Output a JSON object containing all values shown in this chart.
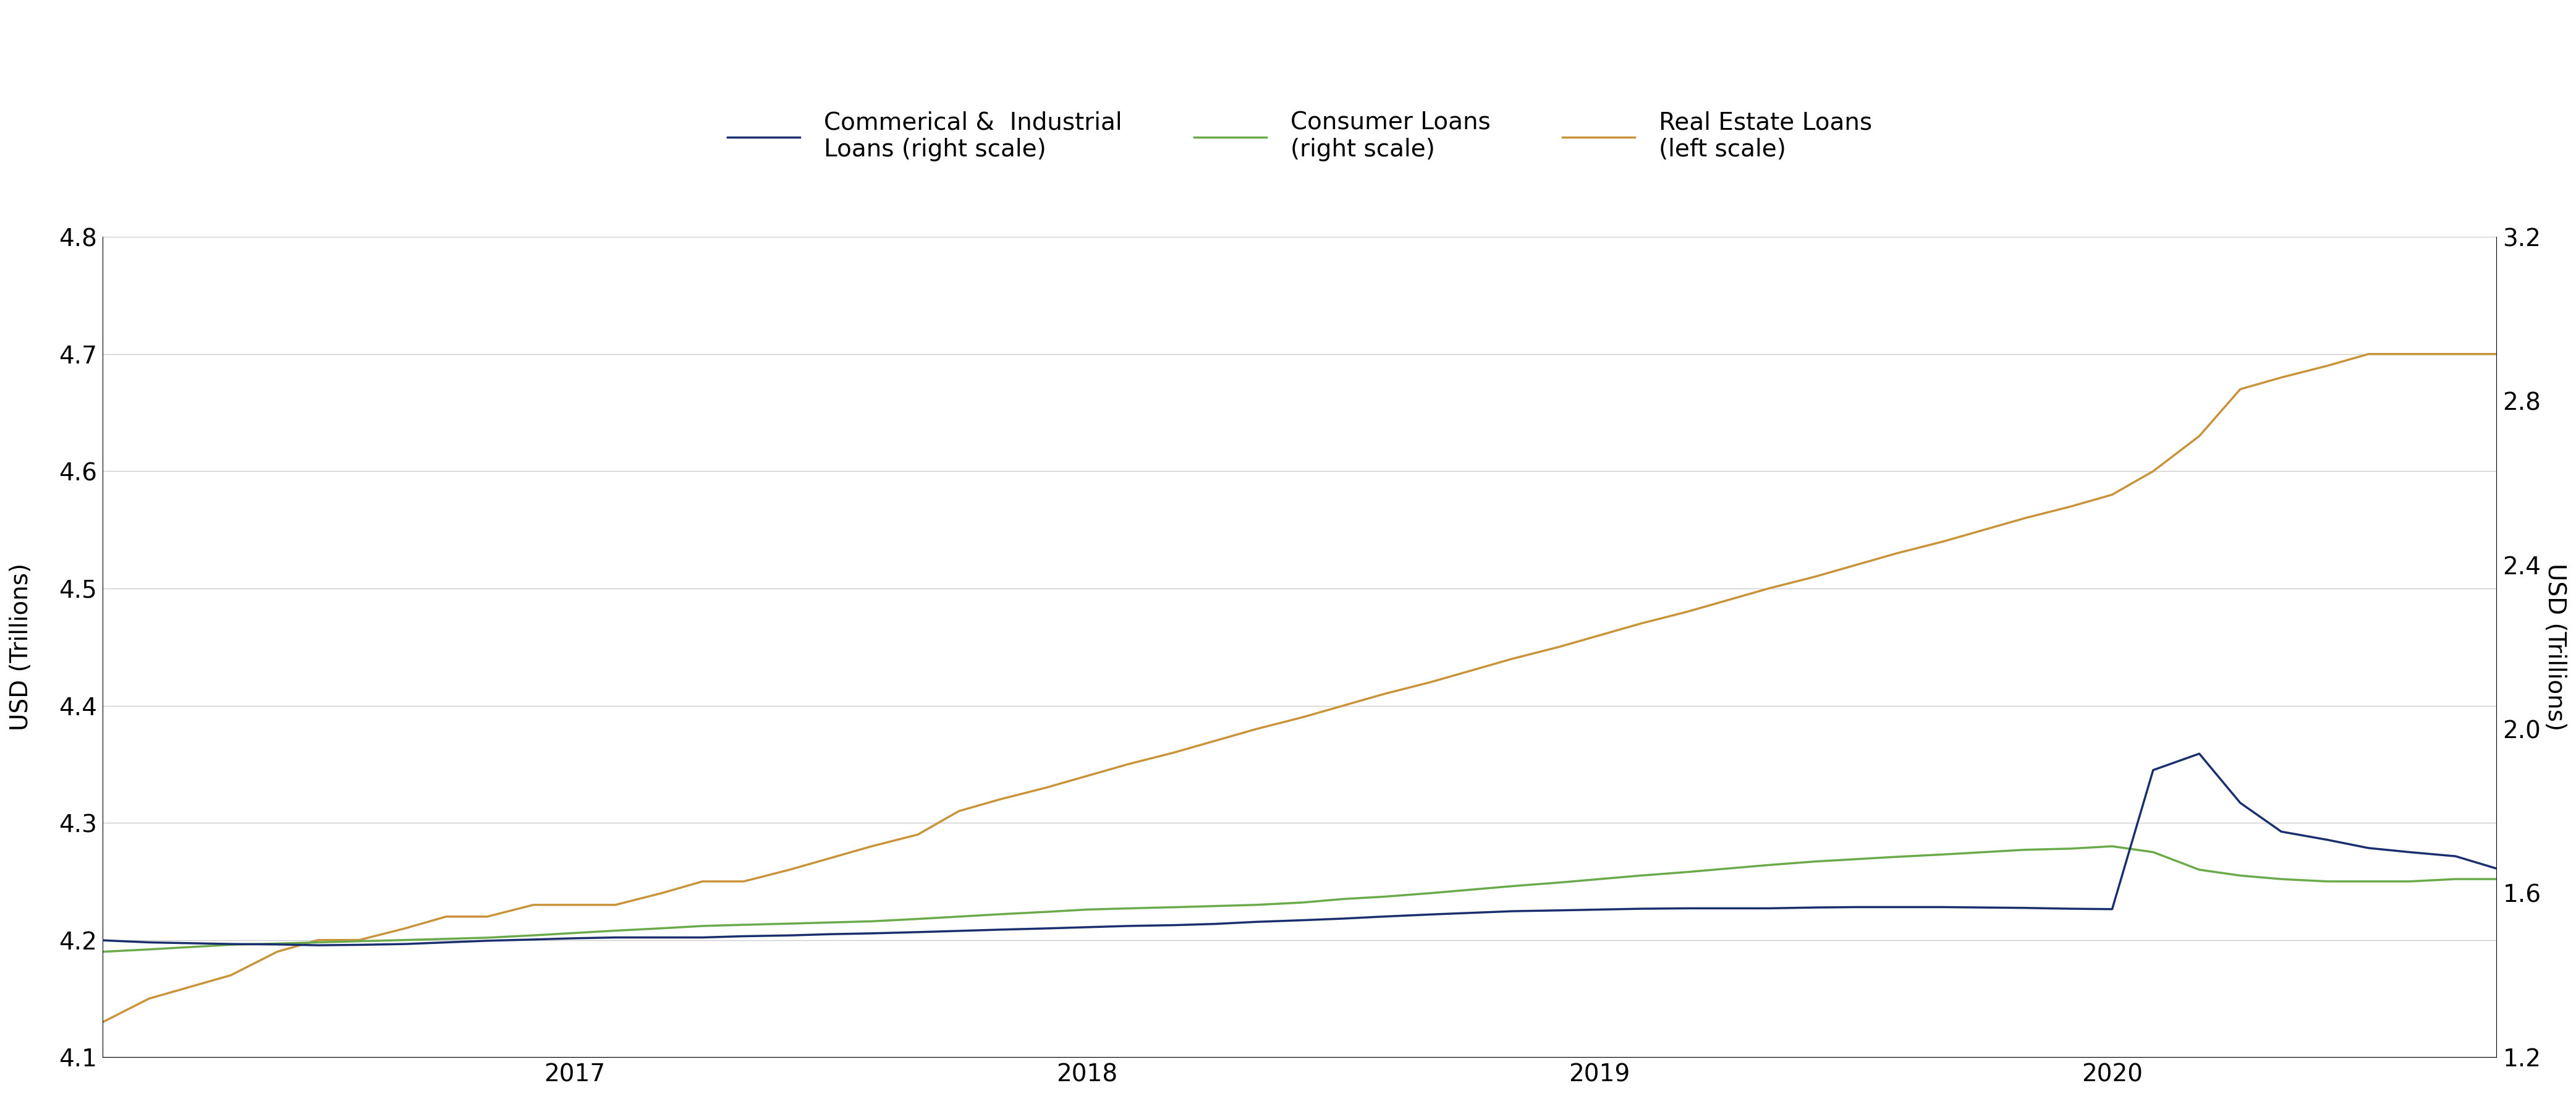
{
  "left_ylabel": "USD (Trillions)",
  "right_ylabel": "USD (Trillions)",
  "left_ylim": [
    4.1,
    4.8
  ],
  "right_ylim": [
    1.2,
    3.2
  ],
  "left_yticks": [
    4.1,
    4.2,
    4.3,
    4.4,
    4.5,
    4.6,
    4.7,
    4.8
  ],
  "right_yticks": [
    1.2,
    1.6,
    2.0,
    2.4,
    2.8,
    3.2
  ],
  "xtick_labels": [
    "2017",
    "2018",
    "2019",
    "2020"
  ],
  "legend": [
    {
      "label": "Commerical &  Industrial\nLoans (right scale)",
      "color": "#1a2f6e",
      "lw": 2.5
    },
    {
      "label": "Consumer Loans\n(right scale)",
      "color": "#6aaa4b",
      "lw": 2.5
    },
    {
      "label": "Real Estate Loans\n(left scale)",
      "color": "#c9933a",
      "lw": 2.5
    }
  ],
  "ci_color": "#1a2f6e",
  "consumer_color": "#6aaa4b",
  "realestate_color": "#c9933a",
  "grid_color": "#cccccc",
  "background_color": "#ffffff",
  "ci_data": {
    "x": [
      2016.08,
      2016.17,
      2016.25,
      2016.33,
      2016.42,
      2016.5,
      2016.58,
      2016.67,
      2016.75,
      2016.83,
      2016.92,
      2017.0,
      2017.08,
      2017.17,
      2017.25,
      2017.33,
      2017.42,
      2017.5,
      2017.58,
      2017.67,
      2017.75,
      2017.83,
      2017.92,
      2018.0,
      2018.08,
      2018.17,
      2018.25,
      2018.33,
      2018.42,
      2018.5,
      2018.58,
      2018.67,
      2018.75,
      2018.83,
      2018.92,
      2019.0,
      2019.08,
      2019.17,
      2019.25,
      2019.33,
      2019.42,
      2019.5,
      2019.58,
      2019.67,
      2019.75,
      2019.83,
      2019.92,
      2020.0,
      2020.08,
      2020.17,
      2020.25,
      2020.33,
      2020.42,
      2020.5,
      2020.58,
      2020.67,
      2020.75
    ],
    "y": [
      1.485,
      1.48,
      1.478,
      1.476,
      1.475,
      1.473,
      1.474,
      1.476,
      1.48,
      1.484,
      1.487,
      1.49,
      1.492,
      1.492,
      1.492,
      1.495,
      1.497,
      1.5,
      1.502,
      1.505,
      1.508,
      1.511,
      1.514,
      1.517,
      1.52,
      1.522,
      1.525,
      1.53,
      1.534,
      1.538,
      1.543,
      1.548,
      1.552,
      1.556,
      1.558,
      1.56,
      1.562,
      1.563,
      1.563,
      1.563,
      1.565,
      1.566,
      1.566,
      1.566,
      1.565,
      1.564,
      1.562,
      1.561,
      1.9,
      1.94,
      1.82,
      1.75,
      1.73,
      1.71,
      1.7,
      1.69,
      1.66
    ]
  },
  "consumer_data": {
    "x": [
      2016.08,
      2016.17,
      2016.25,
      2016.33,
      2016.42,
      2016.5,
      2016.58,
      2016.67,
      2016.75,
      2016.83,
      2016.92,
      2017.0,
      2017.08,
      2017.17,
      2017.25,
      2017.33,
      2017.42,
      2017.5,
      2017.58,
      2017.67,
      2017.75,
      2017.83,
      2017.92,
      2018.0,
      2018.08,
      2018.17,
      2018.25,
      2018.33,
      2018.42,
      2018.5,
      2018.58,
      2018.67,
      2018.75,
      2018.83,
      2018.92,
      2019.0,
      2019.08,
      2019.17,
      2019.25,
      2019.33,
      2019.42,
      2019.5,
      2019.58,
      2019.67,
      2019.75,
      2019.83,
      2019.92,
      2020.0,
      2020.08,
      2020.17,
      2020.25,
      2020.33,
      2020.42,
      2020.5,
      2020.58,
      2020.67,
      2020.75
    ],
    "y": [
      4.19,
      4.192,
      4.194,
      4.196,
      4.197,
      4.198,
      4.199,
      4.2,
      4.201,
      4.202,
      4.204,
      4.206,
      4.208,
      4.21,
      4.212,
      4.213,
      4.214,
      4.215,
      4.216,
      4.218,
      4.22,
      4.222,
      4.224,
      4.226,
      4.227,
      4.228,
      4.229,
      4.23,
      4.232,
      4.235,
      4.237,
      4.24,
      4.243,
      4.246,
      4.249,
      4.252,
      4.255,
      4.258,
      4.261,
      4.264,
      4.267,
      4.269,
      4.271,
      4.273,
      4.275,
      4.277,
      4.278,
      4.28,
      4.275,
      4.26,
      4.255,
      4.252,
      4.25,
      4.25,
      4.25,
      4.252,
      4.252
    ]
  },
  "realestate_data": {
    "x": [
      2016.08,
      2016.17,
      2016.25,
      2016.33,
      2016.42,
      2016.5,
      2016.58,
      2016.67,
      2016.75,
      2016.83,
      2016.92,
      2017.0,
      2017.08,
      2017.17,
      2017.25,
      2017.33,
      2017.42,
      2017.5,
      2017.58,
      2017.67,
      2017.75,
      2017.83,
      2017.92,
      2018.0,
      2018.08,
      2018.17,
      2018.25,
      2018.33,
      2018.42,
      2018.5,
      2018.58,
      2018.67,
      2018.75,
      2018.83,
      2018.92,
      2019.0,
      2019.08,
      2019.17,
      2019.25,
      2019.33,
      2019.42,
      2019.5,
      2019.58,
      2019.67,
      2019.75,
      2019.83,
      2019.92,
      2020.0,
      2020.08,
      2020.17,
      2020.25,
      2020.33,
      2020.42,
      2020.5,
      2020.58,
      2020.67,
      2020.75
    ],
    "y": [
      4.13,
      4.15,
      4.16,
      4.17,
      4.19,
      4.2,
      4.2,
      4.21,
      4.22,
      4.22,
      4.23,
      4.23,
      4.23,
      4.24,
      4.25,
      4.25,
      4.26,
      4.27,
      4.28,
      4.29,
      4.31,
      4.32,
      4.33,
      4.34,
      4.35,
      4.36,
      4.37,
      4.38,
      4.39,
      4.4,
      4.41,
      4.42,
      4.43,
      4.44,
      4.45,
      4.46,
      4.47,
      4.48,
      4.49,
      4.5,
      4.51,
      4.52,
      4.53,
      4.54,
      4.55,
      4.56,
      4.57,
      4.58,
      4.6,
      4.63,
      4.67,
      4.68,
      4.69,
      4.7,
      4.7,
      4.7,
      4.7
    ]
  },
  "xlim": [
    2016.08,
    2020.75
  ]
}
